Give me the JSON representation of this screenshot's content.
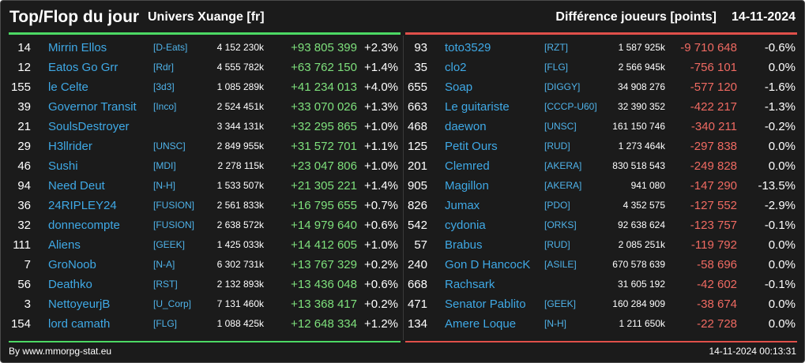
{
  "header": {
    "title": "Top/Flop du jour",
    "universe": "Univers Xuange [fr]",
    "metric": "Différence joueurs [points]",
    "date": "14-11-2024"
  },
  "top": [
    {
      "rank": "14",
      "name": "Mirrin Ellos",
      "alliance": "[D-Eats]",
      "score": "4 152 230k",
      "diff": "+93 805 399",
      "pct": "+2.3%"
    },
    {
      "rank": "12",
      "name": "Eatos Go Grr",
      "alliance": "[Rdr]",
      "score": "4 555 782k",
      "diff": "+63 762 150",
      "pct": "+1.4%"
    },
    {
      "rank": "155",
      "name": "le Celte",
      "alliance": "[3d3]",
      "score": "1 085 289k",
      "diff": "+41 234 013",
      "pct": "+4.0%"
    },
    {
      "rank": "39",
      "name": "Governor Transit",
      "alliance": "[Inco]",
      "score": "2 524 451k",
      "diff": "+33 070 026",
      "pct": "+1.3%"
    },
    {
      "rank": "21",
      "name": "SoulsDestroyer",
      "alliance": "",
      "score": "3 344 131k",
      "diff": "+32 295 865",
      "pct": "+1.0%"
    },
    {
      "rank": "29",
      "name": "H3llrider",
      "alliance": "[UNSC]",
      "score": "2 849 955k",
      "diff": "+31 572 701",
      "pct": "+1.1%"
    },
    {
      "rank": "46",
      "name": "Sushi",
      "alliance": "[MDI]",
      "score": "2 278 115k",
      "diff": "+23 047 806",
      "pct": "+1.0%"
    },
    {
      "rank": "94",
      "name": "Need Deut",
      "alliance": "[N-H]",
      "score": "1 533 507k",
      "diff": "+21 305 221",
      "pct": "+1.4%"
    },
    {
      "rank": "36",
      "name": "24RIPLEY24",
      "alliance": "[FUSION]",
      "score": "2 561 833k",
      "diff": "+16 795 655",
      "pct": "+0.7%"
    },
    {
      "rank": "32",
      "name": "donnecompte",
      "alliance": "[FUSION]",
      "score": "2 638 572k",
      "diff": "+14 979 640",
      "pct": "+0.6%"
    },
    {
      "rank": "111",
      "name": "Aliens",
      "alliance": "[GEEK]",
      "score": "1 425 033k",
      "diff": "+14 412 605",
      "pct": "+1.0%"
    },
    {
      "rank": "7",
      "name": "GroNoob",
      "alliance": "[N-A]",
      "score": "6 302 731k",
      "diff": "+13 767 329",
      "pct": "+0.2%"
    },
    {
      "rank": "56",
      "name": "Deathko",
      "alliance": "[RST]",
      "score": "2 132 893k",
      "diff": "+13 436 048",
      "pct": "+0.6%"
    },
    {
      "rank": "3",
      "name": "NettoyeurjB",
      "alliance": "[U_Corp]",
      "score": "7 131 460k",
      "diff": "+13 368 417",
      "pct": "+0.2%"
    },
    {
      "rank": "154",
      "name": "lord camath",
      "alliance": "[FLG]",
      "score": "1 088 425k",
      "diff": "+12 648 334",
      "pct": "+1.2%"
    }
  ],
  "flop": [
    {
      "rank": "93",
      "name": "toto3529",
      "alliance": "[RZT]",
      "score": "1 587 925k",
      "diff": "-9 710 648",
      "pct": "-0.6%"
    },
    {
      "rank": "35",
      "name": "clo2",
      "alliance": "[FLG]",
      "score": "2 566 945k",
      "diff": "-756 101",
      "pct": "0.0%"
    },
    {
      "rank": "655",
      "name": "Soap",
      "alliance": "[DIGGY]",
      "score": "34 908 276",
      "diff": "-577 120",
      "pct": "-1.6%"
    },
    {
      "rank": "663",
      "name": "Le guitariste",
      "alliance": "[CCCP-U60]",
      "score": "32 390 352",
      "diff": "-422 217",
      "pct": "-1.3%"
    },
    {
      "rank": "468",
      "name": "daewon",
      "alliance": "[UNSC]",
      "score": "161 150 746",
      "diff": "-340 211",
      "pct": "-0.2%"
    },
    {
      "rank": "125",
      "name": "Petit Ours",
      "alliance": "[RUD]",
      "score": "1 273 464k",
      "diff": "-297 838",
      "pct": "0.0%"
    },
    {
      "rank": "201",
      "name": "Clemred",
      "alliance": "[AKERA]",
      "score": "830 518 543",
      "diff": "-249 828",
      "pct": "0.0%"
    },
    {
      "rank": "905",
      "name": "Magillon",
      "alliance": "[AKERA]",
      "score": "941 080",
      "diff": "-147 290",
      "pct": "-13.5%"
    },
    {
      "rank": "826",
      "name": "Jumax",
      "alliance": "[PDO]",
      "score": "4 352 575",
      "diff": "-127 552",
      "pct": "-2.9%"
    },
    {
      "rank": "542",
      "name": "cydonia",
      "alliance": "[ORKS]",
      "score": "92 638 624",
      "diff": "-123 757",
      "pct": "-0.1%"
    },
    {
      "rank": "57",
      "name": "Brabus",
      "alliance": "[RUD]",
      "score": "2 085 251k",
      "diff": "-119 792",
      "pct": "0.0%"
    },
    {
      "rank": "240",
      "name": "Gon D HancocK",
      "alliance": "[ASILE]",
      "score": "670 578 639",
      "diff": "-58 696",
      "pct": "0.0%"
    },
    {
      "rank": "668",
      "name": "Rachsark",
      "alliance": "",
      "score": "31 605 192",
      "diff": "-42 602",
      "pct": "-0.1%"
    },
    {
      "rank": "471",
      "name": "Senator Pablito",
      "alliance": "[GEEK]",
      "score": "160 284 909",
      "diff": "-38 674",
      "pct": "0.0%"
    },
    {
      "rank": "134",
      "name": "Amere Loque",
      "alliance": "[N-H]",
      "score": "1 211 650k",
      "diff": "-22 728",
      "pct": "0.0%"
    }
  ],
  "footer": {
    "credit": "By www.mmorpg-stat.eu",
    "timestamp": "14-11-2024 00:13:31"
  },
  "colors": {
    "background": "#1b1b1b",
    "positive": "#7ee07c",
    "negative": "#f06a62",
    "link": "#3fa9e6",
    "top_line": "#4cd964",
    "flop_line": "#e0504a"
  }
}
